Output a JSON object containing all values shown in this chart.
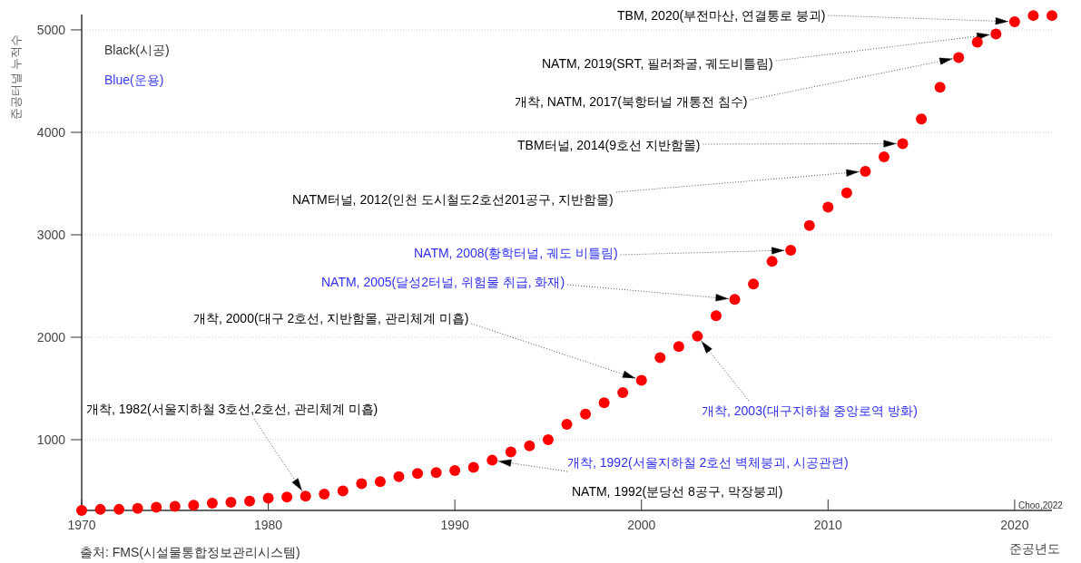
{
  "chart_data": {
    "type": "scatter",
    "xlabel": "준공년도",
    "ylabel": "준공터널 누적수",
    "color": "#ff0000",
    "marker": "circle",
    "grid": "y",
    "xlim": [
      1970,
      2022
    ],
    "ylim": [
      310,
      5150
    ],
    "xticks": [
      1970,
      1980,
      1990,
      2000,
      2010,
      2020
    ],
    "yticks": [
      1000,
      2000,
      3000,
      4000,
      5000
    ],
    "x": [
      1970,
      1971,
      1972,
      1973,
      1974,
      1975,
      1976,
      1977,
      1978,
      1979,
      1980,
      1981,
      1982,
      1983,
      1984,
      1985,
      1986,
      1987,
      1988,
      1989,
      1990,
      1991,
      1992,
      1993,
      1994,
      1995,
      1996,
      1997,
      1998,
      1999,
      2000,
      2001,
      2002,
      2003,
      2004,
      2005,
      2006,
      2007,
      2008,
      2009,
      2010,
      2011,
      2012,
      2013,
      2014,
      2015,
      2016,
      2017,
      2018,
      2019,
      2020,
      2021,
      2022
    ],
    "values": [
      310,
      320,
      320,
      330,
      340,
      350,
      360,
      380,
      390,
      400,
      430,
      440,
      450,
      470,
      500,
      570,
      590,
      640,
      670,
      680,
      700,
      730,
      800,
      880,
      940,
      1000,
      1150,
      1250,
      1360,
      1460,
      1580,
      1800,
      1910,
      2010,
      2210,
      2370,
      2520,
      2740,
      2850,
      3090,
      3270,
      3410,
      3620,
      3760,
      3890,
      4130,
      4440,
      4730,
      4880,
      4960,
      5080,
      5140,
      5140
    ],
    "annotations": [
      "TBM, 2020(부전마산, 연결통로 붕괴)",
      "NATM, 2019(SRT, 필러좌굴, 궤도비틀림)",
      "개착, NATM, 2017(북항터널 개통전 침수)",
      "TBM터널, 2014(9호선 지반함몰)",
      "NATM터널, 2012(인천 도시철도2호선201공구, 지반함몰)",
      "NATM, 2008(황학터널, 궤도 비틀림)",
      "NATM, 2005(달성2터널, 위험물 취급, 화재)",
      "개착, 2000(대구 2호선, 지반함몰, 관리체계 미흡)",
      "개착, 2003(대구지하철 중앙로역 방화)",
      "개착, 1982(서울지하철 3호선,2호선, 관리체계 미흡)",
      "개착, 1992(서울지하철 2호선 벽체붕괴, 시공관련)",
      "NATM, 1992(분당선 8공구, 막장붕괴)",
      "Black(시공)",
      "Blue(운용)",
      "Choo,2022",
      "출처:  FMS(시설물통합정보관리시스템)"
    ]
  }
}
